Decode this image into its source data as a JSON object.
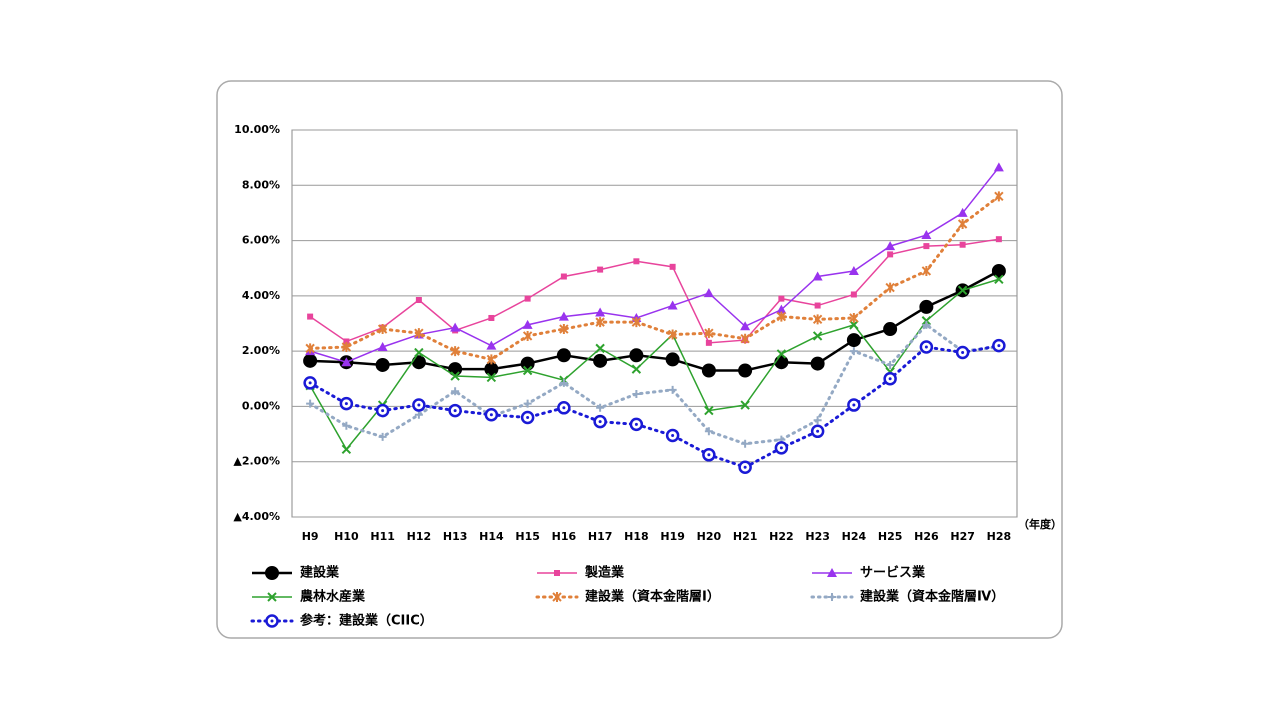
{
  "chart_data": {
    "type": "line",
    "xlabel": "（年度）",
    "categories": [
      "H9",
      "H10",
      "H11",
      "H12",
      "H13",
      "H14",
      "H15",
      "H16",
      "H17",
      "H18",
      "H19",
      "H20",
      "H21",
      "H22",
      "H23",
      "H24",
      "H25",
      "H26",
      "H27",
      "H28"
    ],
    "ylim": [
      -4,
      10
    ],
    "yticks": [
      {
        "value": -4,
        "label": "▲4.00%"
      },
      {
        "value": -2,
        "label": "▲2.00%"
      },
      {
        "value": 0,
        "label": "0.00%"
      },
      {
        "value": 2,
        "label": "2.00%"
      },
      {
        "value": 4,
        "label": "4.00%"
      },
      {
        "value": 6,
        "label": "6.00%"
      },
      {
        "value": 8,
        "label": "8.00%"
      },
      {
        "value": 10,
        "label": "10.00%"
      }
    ],
    "grid": true,
    "series": [
      {
        "name": "建設業",
        "color": "#000000",
        "marker": "circle",
        "dash": "solid",
        "values": [
          1.65,
          1.6,
          1.5,
          1.6,
          1.35,
          1.35,
          1.55,
          1.85,
          1.65,
          1.85,
          1.7,
          1.3,
          1.3,
          1.6,
          1.55,
          2.4,
          2.8,
          3.6,
          4.2,
          4.9
        ]
      },
      {
        "name": "製造業",
        "color": "#e8449c",
        "marker": "square",
        "dash": "solid",
        "values": [
          3.25,
          2.35,
          2.85,
          3.85,
          2.75,
          3.2,
          3.9,
          4.7,
          4.95,
          5.25,
          5.05,
          2.3,
          2.4,
          3.9,
          3.65,
          4.05,
          5.5,
          5.8,
          5.85,
          6.05
        ]
      },
      {
        "name": "サービス業",
        "color": "#9933ee",
        "marker": "triangle",
        "dash": "solid",
        "values": [
          2.0,
          1.6,
          2.15,
          2.6,
          2.85,
          2.2,
          2.95,
          3.25,
          3.4,
          3.2,
          3.65,
          4.1,
          2.9,
          3.5,
          4.7,
          4.9,
          5.8,
          6.2,
          7.0,
          8.65
        ]
      },
      {
        "name": "農林水産業",
        "color": "#2ea22e",
        "marker": "x",
        "dash": "solid",
        "values": [
          0.75,
          -1.55,
          0.05,
          1.95,
          1.1,
          1.05,
          1.3,
          0.95,
          2.1,
          1.35,
          2.6,
          -0.15,
          0.05,
          1.9,
          2.55,
          2.95,
          1.25,
          3.1,
          4.2,
          4.6
        ]
      },
      {
        "name": "建設業（資本金階層Ⅰ）",
        "color": "#e0803a",
        "marker": "asterisk",
        "dash": "dotted",
        "values": [
          2.1,
          2.15,
          2.8,
          2.65,
          2.0,
          1.7,
          2.55,
          2.8,
          3.05,
          3.05,
          2.6,
          2.65,
          2.45,
          3.25,
          3.15,
          3.2,
          4.3,
          4.9,
          6.6,
          7.6
        ]
      },
      {
        "name": "建設業（資本金階層Ⅳ）",
        "color": "#94a9c4",
        "marker": "plus",
        "dash": "dotted",
        "values": [
          0.1,
          -0.7,
          -1.1,
          -0.3,
          0.55,
          -0.35,
          0.1,
          0.85,
          -0.05,
          0.45,
          0.6,
          -0.9,
          -1.35,
          -1.2,
          -0.5,
          2.0,
          1.5,
          2.95,
          2.0,
          2.15
        ]
      },
      {
        "name": "参考：建設業（CIIC）",
        "color": "#1a1ad6",
        "marker": "open-circle",
        "dash": "dotted",
        "values": [
          0.85,
          0.1,
          -0.15,
          0.05,
          -0.15,
          -0.3,
          -0.4,
          -0.05,
          -0.55,
          -0.65,
          -1.05,
          -1.75,
          -2.2,
          -1.5,
          -0.9,
          0.05,
          1.0,
          2.15,
          1.95,
          2.2
        ]
      }
    ]
  }
}
